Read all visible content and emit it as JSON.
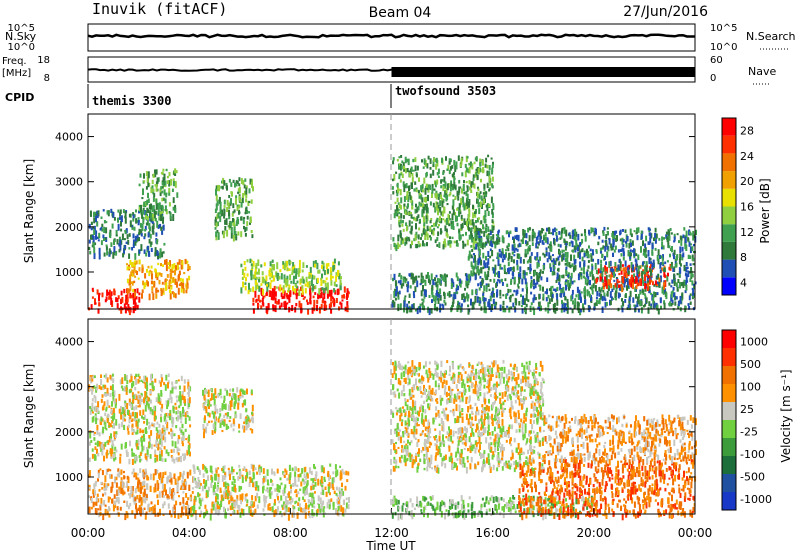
{
  "header": {
    "station": "Inuvik (fitACF)",
    "beam": "Beam 04",
    "date": "27/Jun/2016"
  },
  "noise_panel": {
    "left_label": "N.Sky",
    "right_label": "N.Search",
    "y_ticks": [
      "10^5",
      "10^0"
    ],
    "right_ticks": [
      "10^5",
      "10^0"
    ]
  },
  "freq_panel": {
    "left_label_top": "Freq.",
    "left_label_unit": "[MHz]",
    "y_ticks": [
      "18",
      "8"
    ],
    "right_label": "Nave",
    "right_ticks": [
      "60",
      "0"
    ]
  },
  "cpid": {
    "label": "CPID",
    "programs": [
      {
        "name": "themis 3300",
        "start_hour": 0
      },
      {
        "name": "twofsound 3503",
        "start_hour": 12
      }
    ]
  },
  "x_axis": {
    "label": "Time UT",
    "ticks": [
      "00:00",
      "04:00",
      "08:00",
      "12:00",
      "16:00",
      "20:00",
      "00:00"
    ]
  },
  "power_panel": {
    "ylabel": "Slant Range [km]",
    "y_ticks": [
      "4000",
      "3000",
      "2000",
      "1000"
    ],
    "colorbar_label": "Power [dB]",
    "colorbar_ticks": [
      "28",
      "24",
      "20",
      "16",
      "12",
      "8",
      "4"
    ],
    "colors": [
      "#0000ff",
      "#1f4fb5",
      "#2f7a3a",
      "#3fa050",
      "#8fcf40",
      "#e8e000",
      "#f0a000",
      "#f07000",
      "#ff3000",
      "#ff0000"
    ]
  },
  "velocity_panel": {
    "ylabel": "Slant Range [km]",
    "y_ticks": [
      "4000",
      "3000",
      "2000",
      "1000"
    ],
    "colorbar_label": "Velocity [m s⁻¹]",
    "colorbar_ticks": [
      "1000",
      "500",
      "100",
      "25",
      "-25",
      "-100",
      "-500",
      "-1000"
    ],
    "colors": [
      "#1838c8",
      "#2050a0",
      "#1c6e3a",
      "#3c9c3c",
      "#70d040",
      "#c8c8c0",
      "#ff9000",
      "#f07000",
      "#ff3000",
      "#ff0000"
    ]
  },
  "chart_data": {
    "type": "heatmap",
    "x_range_hours": [
      0,
      24
    ],
    "y_range_km": [
      180,
      4500
    ],
    "power_blobs": [
      {
        "t0": 0.0,
        "t1": 2.0,
        "r0": 180,
        "r1": 650,
        "level": 9
      },
      {
        "t0": 1.5,
        "t1": 4.0,
        "r0": 500,
        "r1": 1300,
        "level": 6
      },
      {
        "t0": 6.5,
        "t1": 10.3,
        "r0": 180,
        "r1": 700,
        "level": 9
      },
      {
        "t0": 6.0,
        "t1": 10.0,
        "r0": 600,
        "r1": 1300,
        "level": 4
      },
      {
        "t0": 0.0,
        "t1": 3.0,
        "r0": 1400,
        "r1": 2400,
        "level": 2
      },
      {
        "t0": 2.0,
        "t1": 3.5,
        "r0": 2200,
        "r1": 3300,
        "level": 3
      },
      {
        "t0": 5.0,
        "t1": 6.5,
        "r0": 1800,
        "r1": 3100,
        "level": 3
      },
      {
        "t0": 12.0,
        "t1": 16.0,
        "r0": 1600,
        "r1": 3600,
        "level": 3
      },
      {
        "t0": 12.0,
        "t1": 24.0,
        "r0": 180,
        "r1": 1000,
        "level": 2
      },
      {
        "t0": 20.0,
        "t1": 23.0,
        "r0": 700,
        "r1": 1200,
        "level": 8
      },
      {
        "t0": 15.0,
        "t1": 24.0,
        "r0": 1000,
        "r1": 2000,
        "level": 2
      }
    ],
    "velocity_blobs": [
      {
        "t0": 0.0,
        "t1": 4.0,
        "r0": 180,
        "r1": 1200,
        "level": 6
      },
      {
        "t0": 0.0,
        "t1": 4.0,
        "r0": 1400,
        "r1": 3300,
        "level": 5
      },
      {
        "t0": 4.0,
        "t1": 10.3,
        "r0": 180,
        "r1": 1300,
        "level": 5
      },
      {
        "t0": 4.5,
        "t1": 6.5,
        "r0": 2000,
        "r1": 3000,
        "level": 5
      },
      {
        "t0": 12.0,
        "t1": 18.0,
        "r0": 1200,
        "r1": 3600,
        "level": 5
      },
      {
        "t0": 12.0,
        "t1": 20.0,
        "r0": 180,
        "r1": 600,
        "level": 4
      },
      {
        "t0": 17.0,
        "t1": 24.0,
        "r0": 180,
        "r1": 1400,
        "level": 7
      },
      {
        "t0": 18.0,
        "t1": 24.0,
        "r0": 1400,
        "r1": 2400,
        "level": 6
      }
    ]
  }
}
